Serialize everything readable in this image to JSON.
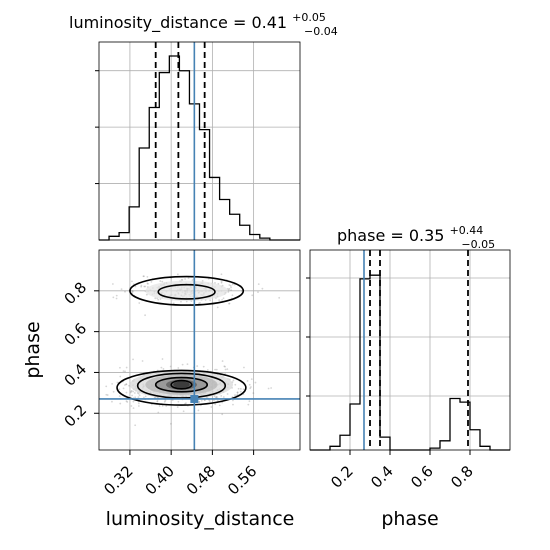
{
  "chart_data": [
    {
      "type": "histogram",
      "panel": "top-left",
      "title_main": "luminosity_distance = 0.41",
      "title_sup": "+0.05",
      "title_sub": "−0.04",
      "parameter": "luminosity_distance",
      "xlim": [
        0.26,
        0.65
      ],
      "grid": true,
      "truth_value": 0.445,
      "quantile_lines": [
        0.37,
        0.414,
        0.465
      ],
      "bin_edges": [
        0.26,
        0.2795,
        0.299,
        0.3185,
        0.338,
        0.3575,
        0.377,
        0.3965,
        0.416,
        0.4355,
        0.455,
        0.4745,
        0.494,
        0.5135,
        0.533,
        0.5525,
        0.572,
        0.5915,
        0.611,
        0.6305,
        0.65
      ],
      "counts": [
        0,
        0.02,
        0.04,
        0.18,
        0.5,
        0.72,
        0.91,
        1.0,
        0.92,
        0.74,
        0.6,
        0.34,
        0.22,
        0.14,
        0.08,
        0.03,
        0.01,
        0,
        0,
        0
      ]
    },
    {
      "type": "contour",
      "panel": "bottom-left",
      "xlabel": "luminosity_distance",
      "ylabel": "phase",
      "xlim": [
        0.26,
        0.65
      ],
      "ylim": [
        0.02,
        1.0
      ],
      "xticks": [
        "0.32",
        "0.40",
        "0.48",
        "0.56"
      ],
      "xtick_values": [
        0.32,
        0.4,
        0.48,
        0.56
      ],
      "yticks": [
        "0.2",
        "0.4",
        "0.6",
        "0.8"
      ],
      "ytick_values": [
        0.2,
        0.4,
        0.6,
        0.8
      ],
      "truth_point": [
        0.445,
        0.27
      ],
      "modes": [
        {
          "center": [
            0.42,
            0.34
          ],
          "levels": [
            {
              "rx": 0.125,
              "ry": 0.085,
              "dy": -0.015
            },
            {
              "rx": 0.085,
              "ry": 0.06,
              "dy": -0.005
            },
            {
              "rx": 0.05,
              "ry": 0.035,
              "dy": 0
            },
            {
              "rx": 0.02,
              "ry": 0.02,
              "dy": 0
            }
          ]
        },
        {
          "center": [
            0.43,
            0.8
          ],
          "levels": [
            {
              "rx": 0.11,
              "ry": 0.07,
              "dy": 0
            },
            {
              "rx": 0.055,
              "ry": 0.035,
              "dy": -0.005
            }
          ]
        }
      ]
    },
    {
      "type": "histogram",
      "panel": "bottom-right",
      "title_main": "phase = 0.35",
      "title_sup": "+0.44",
      "title_sub": "−0.05",
      "xlabel": "phase",
      "parameter": "phase",
      "xlim": [
        0.0,
        1.0
      ],
      "grid": true,
      "xticks": [
        "0.2",
        "0.4",
        "0.6",
        "0.8"
      ],
      "xtick_values": [
        0.2,
        0.4,
        0.6,
        0.8
      ],
      "truth_value": 0.27,
      "quantile_lines": [
        0.3,
        0.35,
        0.79
      ],
      "bin_edges": [
        0.0,
        0.05,
        0.1,
        0.15,
        0.2,
        0.25,
        0.3,
        0.35,
        0.4,
        0.45,
        0.5,
        0.55,
        0.6,
        0.65,
        0.7,
        0.75,
        0.8,
        0.85,
        0.9,
        0.95,
        1.0
      ],
      "counts": [
        0,
        0,
        0.02,
        0.08,
        0.25,
        0.93,
        0.95,
        0.07,
        0,
        0,
        0,
        0,
        0.01,
        0.05,
        0.28,
        0.26,
        0.11,
        0.02,
        0,
        0
      ]
    }
  ],
  "colors": {
    "truth": "#4682b4",
    "grid": "#b0b0b0",
    "line": "#000000",
    "scatter": "#8a8a8a"
  }
}
